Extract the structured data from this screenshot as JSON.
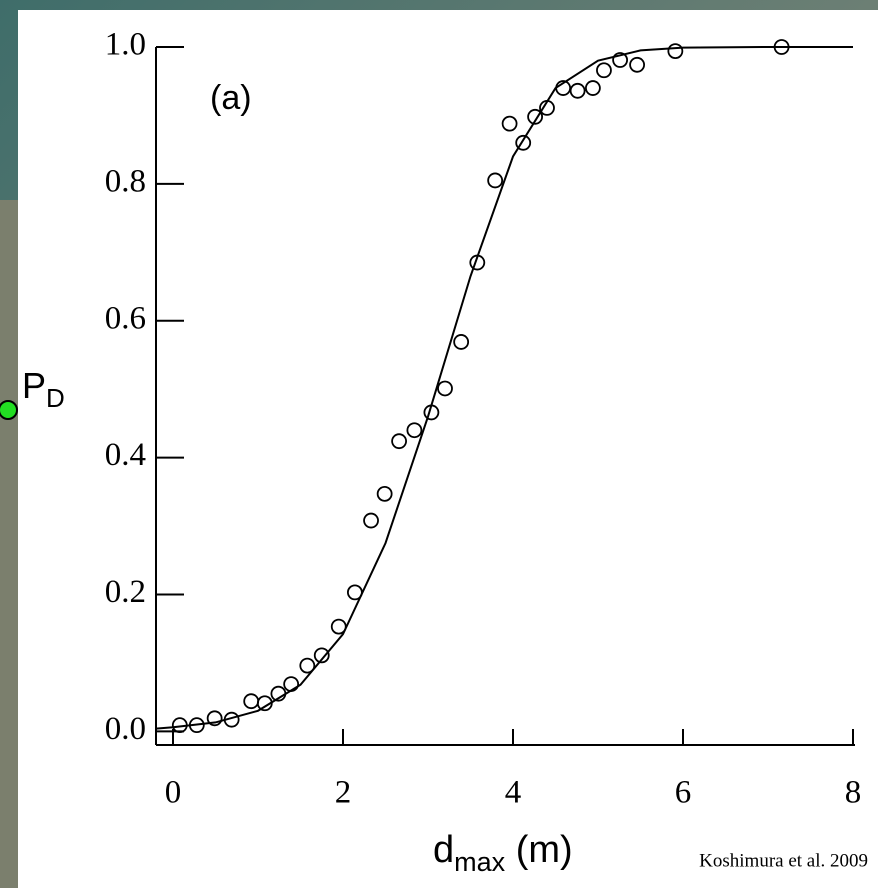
{
  "chart_data": {
    "type": "scatter",
    "panel_label": "(a)",
    "ylabel": [
      "P",
      "D"
    ],
    "xlabel": [
      "d",
      "max",
      " (m)"
    ],
    "source": "Koshimura et al. 2009",
    "xlim": [
      -0.2,
      8
    ],
    "ylim": [
      -0.02,
      1.0
    ],
    "xticks": [
      0,
      2,
      4,
      6,
      8
    ],
    "yticks": [
      {
        "value": 0,
        "label": "0.0"
      },
      0.2,
      0.4,
      0.6,
      0.8,
      {
        "value": 1,
        "label": "1.0"
      }
    ],
    "series": [
      {
        "type": "scatter",
        "color": "#000000",
        "x": [
          0.08,
          0.28,
          0.49,
          0.69,
          0.92,
          1.08,
          1.24,
          1.39,
          1.58,
          1.75,
          1.95,
          2.14,
          2.33,
          2.49,
          2.66,
          2.84,
          3.04,
          3.2,
          3.39,
          3.58,
          3.79,
          3.96,
          4.12,
          4.26,
          4.4,
          4.59,
          4.76,
          4.94,
          5.07,
          5.26,
          5.46,
          5.91,
          7.16
        ],
        "values": [
          0.009,
          0.009,
          0.019,
          0.017,
          0.044,
          0.041,
          0.055,
          0.069,
          0.096,
          0.111,
          0.153,
          0.203,
          0.308,
          0.347,
          0.424,
          0.44,
          0.466,
          0.501,
          0.569,
          0.685,
          0.805,
          0.888,
          0.86,
          0.898,
          0.911,
          0.94,
          0.936,
          0.94,
          0.966,
          0.981,
          0.974,
          0.994,
          1.0
        ]
      },
      {
        "type": "line",
        "color": "#000000",
        "x": [
          -0.2,
          0,
          0.5,
          1,
          1.5,
          2,
          2.5,
          3,
          3.5,
          4,
          4.5,
          5,
          5.5,
          6,
          7,
          8
        ],
        "values": [
          0.004,
          0.006,
          0.013,
          0.03,
          0.068,
          0.142,
          0.275,
          0.46,
          0.665,
          0.84,
          0.94,
          0.98,
          0.995,
          0.999,
          1.0,
          1.0
        ]
      }
    ]
  }
}
